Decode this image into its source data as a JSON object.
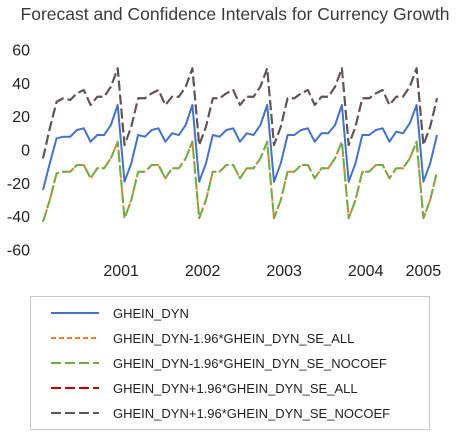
{
  "chart_data": {
    "type": "line",
    "title": "Forecast and Confidence Intervals for Currency Growth",
    "xlabel": "",
    "ylabel": "",
    "ylim": [
      -60,
      60
    ],
    "yticks": [
      -60,
      -40,
      -20,
      0,
      20,
      40,
      60
    ],
    "x_tick_labels": [
      "2001",
      "2002",
      "2003",
      "2004",
      "2005"
    ],
    "x_tick_years": [
      2001,
      2002,
      2003,
      2004,
      2005
    ],
    "x": [
      "2000-07",
      "2000-08",
      "2000-09",
      "2000-10",
      "2000-11",
      "2000-12",
      "2001-01",
      "2001-02",
      "2001-03",
      "2001-04",
      "2001-05",
      "2001-06",
      "2001-07",
      "2001-08",
      "2001-09",
      "2001-10",
      "2001-11",
      "2001-12",
      "2002-01",
      "2002-02",
      "2002-03",
      "2002-04",
      "2002-05",
      "2002-06",
      "2002-07",
      "2002-08",
      "2002-09",
      "2002-10",
      "2002-11",
      "2002-12",
      "2003-01",
      "2003-02",
      "2003-03",
      "2003-04",
      "2003-05",
      "2003-06",
      "2003-07",
      "2003-08",
      "2003-09",
      "2003-10",
      "2003-11",
      "2003-12",
      "2004-01",
      "2004-02",
      "2004-03",
      "2004-04",
      "2004-05",
      "2004-06",
      "2004-07",
      "2004-08",
      "2004-09",
      "2004-10",
      "2004-11",
      "2004-12",
      "2005-01",
      "2005-02",
      "2005-03",
      "2005-04",
      "2005-05"
    ],
    "grid": false,
    "legend_position": "bottom",
    "series": [
      {
        "name": "GHEIN_DYN",
        "color": "#4472c4",
        "dash": "solid",
        "values": [
          -24,
          -8,
          7,
          8,
          8,
          12,
          13,
          5,
          9,
          9,
          15,
          27,
          -19,
          -8,
          9,
          8,
          12,
          13,
          5,
          10,
          9,
          15,
          27,
          -19,
          -8,
          9,
          8,
          12,
          13,
          5,
          10,
          9,
          15,
          27,
          -19,
          -8,
          9,
          9,
          12,
          13,
          5,
          10,
          10,
          15,
          27,
          -19,
          -8,
          9,
          9,
          12,
          13,
          5,
          11,
          10,
          16,
          27,
          -19,
          -8,
          9
        ]
      },
      {
        "name": "GHEIN_DYN-1.96*GHEIN_DYN_SE_ALL",
        "color": "#ed7d31",
        "dash": "dashed",
        "values": [
          -43,
          -30,
          -14,
          -13,
          -13,
          -9,
          -9,
          -17,
          -11,
          -11,
          -5,
          5,
          -41,
          -30,
          -13,
          -13,
          -9,
          -9,
          -17,
          -11,
          -11,
          -5,
          5,
          -41,
          -30,
          -13,
          -13,
          -9,
          -9,
          -17,
          -11,
          -11,
          -5,
          5,
          -41,
          -30,
          -13,
          -13,
          -9,
          -9,
          -17,
          -11,
          -11,
          -5,
          5,
          -41,
          -30,
          -13,
          -13,
          -9,
          -9,
          -17,
          -11,
          -11,
          -5,
          5,
          -41,
          -30,
          -13
        ]
      },
      {
        "name": "GHEIN_DYN-1.96*GHEIN_DYN_SE_NOCOEF",
        "color": "#70ad47",
        "dash": "longdash",
        "values": [
          -43,
          -30,
          -14,
          -13,
          -13,
          -9,
          -9,
          -17,
          -11,
          -11,
          -5,
          5,
          -41,
          -30,
          -13,
          -13,
          -9,
          -9,
          -17,
          -11,
          -11,
          -5,
          5,
          -41,
          -30,
          -13,
          -13,
          -9,
          -9,
          -17,
          -11,
          -11,
          -5,
          5,
          -41,
          -30,
          -13,
          -13,
          -9,
          -9,
          -17,
          -11,
          -11,
          -5,
          5,
          -41,
          -30,
          -13,
          -13,
          -9,
          -9,
          -17,
          -11,
          -11,
          -5,
          5,
          -41,
          -30,
          -13
        ]
      },
      {
        "name": "GHEIN_DYN+1.96*GHEIN_DYN_SE_ALL",
        "color": "#c00000",
        "dash": "longdash",
        "values": [
          -5,
          13,
          29,
          31,
          30,
          34,
          36,
          27,
          32,
          32,
          38,
          49,
          3,
          14,
          31,
          31,
          34,
          36,
          27,
          32,
          32,
          38,
          49,
          3,
          14,
          31,
          31,
          34,
          36,
          27,
          32,
          32,
          38,
          49,
          3,
          14,
          31,
          31,
          34,
          36,
          27,
          32,
          32,
          38,
          49,
          3,
          14,
          31,
          31,
          34,
          36,
          27,
          32,
          32,
          38,
          49,
          3,
          14,
          31
        ]
      },
      {
        "name": "GHEIN_DYN+1.96*GHEIN_DYN_SE_NOCOEF",
        "color": "#595959",
        "dash": "longdash",
        "values": [
          -5,
          13,
          29,
          31,
          30,
          34,
          36,
          27,
          32,
          32,
          38,
          49,
          3,
          14,
          31,
          31,
          34,
          36,
          27,
          32,
          32,
          38,
          49,
          3,
          14,
          31,
          31,
          34,
          36,
          27,
          32,
          32,
          38,
          49,
          3,
          14,
          31,
          31,
          34,
          36,
          27,
          32,
          32,
          38,
          49,
          3,
          14,
          31,
          31,
          34,
          36,
          27,
          32,
          32,
          38,
          49,
          3,
          14,
          31
        ]
      }
    ]
  }
}
